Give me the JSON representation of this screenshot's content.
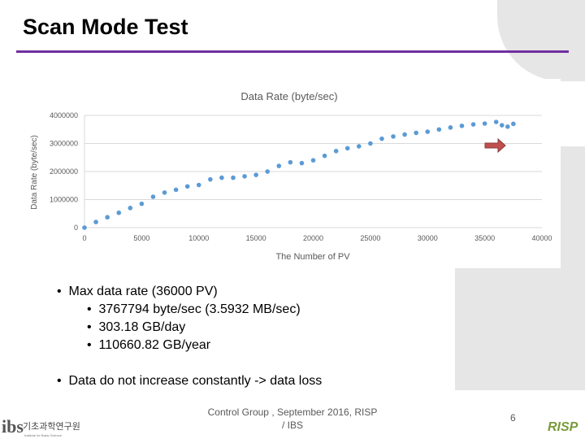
{
  "slide": {
    "title": "Scan Mode Test",
    "bullets": {
      "main1": "Max data rate (36000 PV)",
      "sub": [
        "3767794 byte/sec (3.5932 MB/sec)",
        "303.18 GB/day",
        "110660.82 GB/year"
      ],
      "main2": "Data do not increase constantly -> data loss",
      "marker": "•"
    },
    "footer": {
      "line1": "Control Group , September 2016, RISP",
      "line2": "/ IBS"
    },
    "page_number": "6",
    "logo_left_text": "ibs",
    "logo_left_korean": "기초과학연구원",
    "logo_left_sub": "Institute for Basic Science",
    "logo_right_text": "RISP"
  },
  "colors": {
    "accent": "#7030a0",
    "series": "#5b9bd5",
    "arrow": "#c0504d"
  },
  "chart_data": {
    "type": "scatter",
    "title": "Data Rate (byte/sec)",
    "xlabel": "The Number of PV",
    "ylabel": "Data Rate (byte/sec)",
    "xlim": [
      0,
      40000
    ],
    "ylim": [
      0,
      4000000
    ],
    "xticks": [
      "0",
      "5000",
      "10000",
      "15000",
      "20000",
      "25000",
      "30000",
      "35000",
      "40000"
    ],
    "yticks": [
      "0",
      "1000000",
      "2000000",
      "3000000",
      "4000000"
    ],
    "grid": "horizontal",
    "annotation": "arrow pointing to drop after 36000 PV",
    "points": [
      [
        0,
        0
      ],
      [
        1000,
        200000
      ],
      [
        2000,
        370000
      ],
      [
        3000,
        530000
      ],
      [
        4000,
        700000
      ],
      [
        5000,
        850000
      ],
      [
        6000,
        1100000
      ],
      [
        7000,
        1250000
      ],
      [
        8000,
        1350000
      ],
      [
        9000,
        1470000
      ],
      [
        10000,
        1520000
      ],
      [
        11000,
        1720000
      ],
      [
        12000,
        1780000
      ],
      [
        13000,
        1780000
      ],
      [
        14000,
        1830000
      ],
      [
        15000,
        1880000
      ],
      [
        16000,
        2000000
      ],
      [
        17000,
        2200000
      ],
      [
        18000,
        2330000
      ],
      [
        19000,
        2300000
      ],
      [
        20000,
        2400000
      ],
      [
        21000,
        2560000
      ],
      [
        22000,
        2730000
      ],
      [
        23000,
        2830000
      ],
      [
        24000,
        2900000
      ],
      [
        25000,
        3000000
      ],
      [
        26000,
        3170000
      ],
      [
        27000,
        3250000
      ],
      [
        28000,
        3320000
      ],
      [
        29000,
        3380000
      ],
      [
        30000,
        3420000
      ],
      [
        31000,
        3500000
      ],
      [
        32000,
        3570000
      ],
      [
        33000,
        3630000
      ],
      [
        34000,
        3680000
      ],
      [
        35000,
        3710000
      ],
      [
        36000,
        3767794
      ],
      [
        36500,
        3650000
      ],
      [
        37000,
        3600000
      ],
      [
        37500,
        3700000
      ]
    ]
  }
}
